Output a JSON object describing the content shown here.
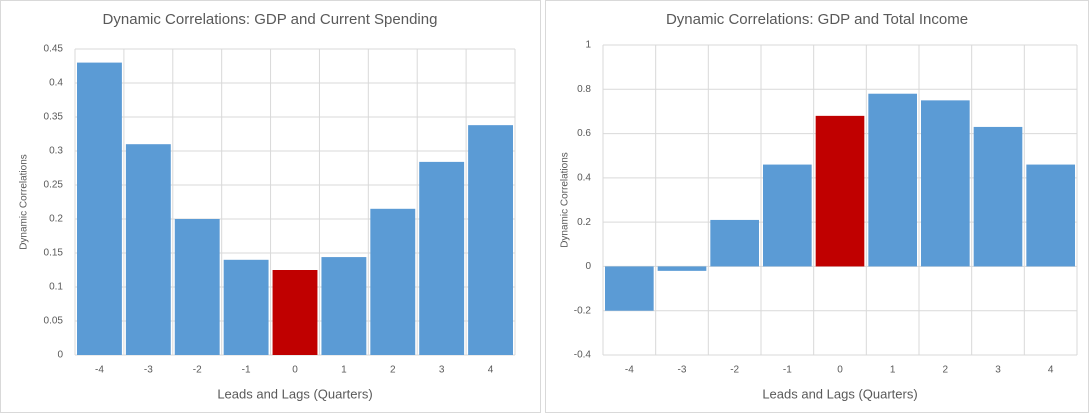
{
  "chart_data": [
    {
      "type": "bar",
      "title": "Dynamic Correlations: GDP and Current Spending",
      "x_label": "Leads and Lags (Quarters)",
      "y_label": "Dynamic Correlations",
      "categories": [
        "-4",
        "-3",
        "-2",
        "-1",
        "0",
        "1",
        "2",
        "3",
        "4"
      ],
      "values": [
        0.43,
        0.31,
        0.2,
        0.14,
        0.125,
        0.144,
        0.215,
        0.284,
        0.338
      ],
      "colors": [
        "#5b9bd5",
        "#5b9bd5",
        "#5b9bd5",
        "#5b9bd5",
        "#c00000",
        "#5b9bd5",
        "#5b9bd5",
        "#5b9bd5",
        "#5b9bd5"
      ],
      "ylim": [
        0,
        0.45
      ],
      "yticks": [
        0,
        0.05,
        0.1,
        0.15,
        0.2,
        0.25,
        0.3,
        0.35,
        0.4,
        0.45
      ],
      "grid": true
    },
    {
      "type": "bar",
      "title": "Dynamic Correlations: GDP and Total Income",
      "x_label": "Leads and Lags (Quarters)",
      "y_label": "Dynamic Correlations",
      "categories": [
        "-4",
        "-3",
        "-2",
        "-1",
        "0",
        "1",
        "2",
        "3",
        "4"
      ],
      "values": [
        -0.2,
        -0.02,
        0.21,
        0.46,
        0.68,
        0.78,
        0.75,
        0.63,
        0.46
      ],
      "colors": [
        "#5b9bd5",
        "#5b9bd5",
        "#5b9bd5",
        "#5b9bd5",
        "#c00000",
        "#5b9bd5",
        "#5b9bd5",
        "#5b9bd5",
        "#5b9bd5"
      ],
      "ylim": [
        -0.4,
        1
      ],
      "yticks": [
        -0.4,
        -0.2,
        0,
        0.2,
        0.4,
        0.6,
        0.8,
        1
      ],
      "grid": true
    }
  ]
}
